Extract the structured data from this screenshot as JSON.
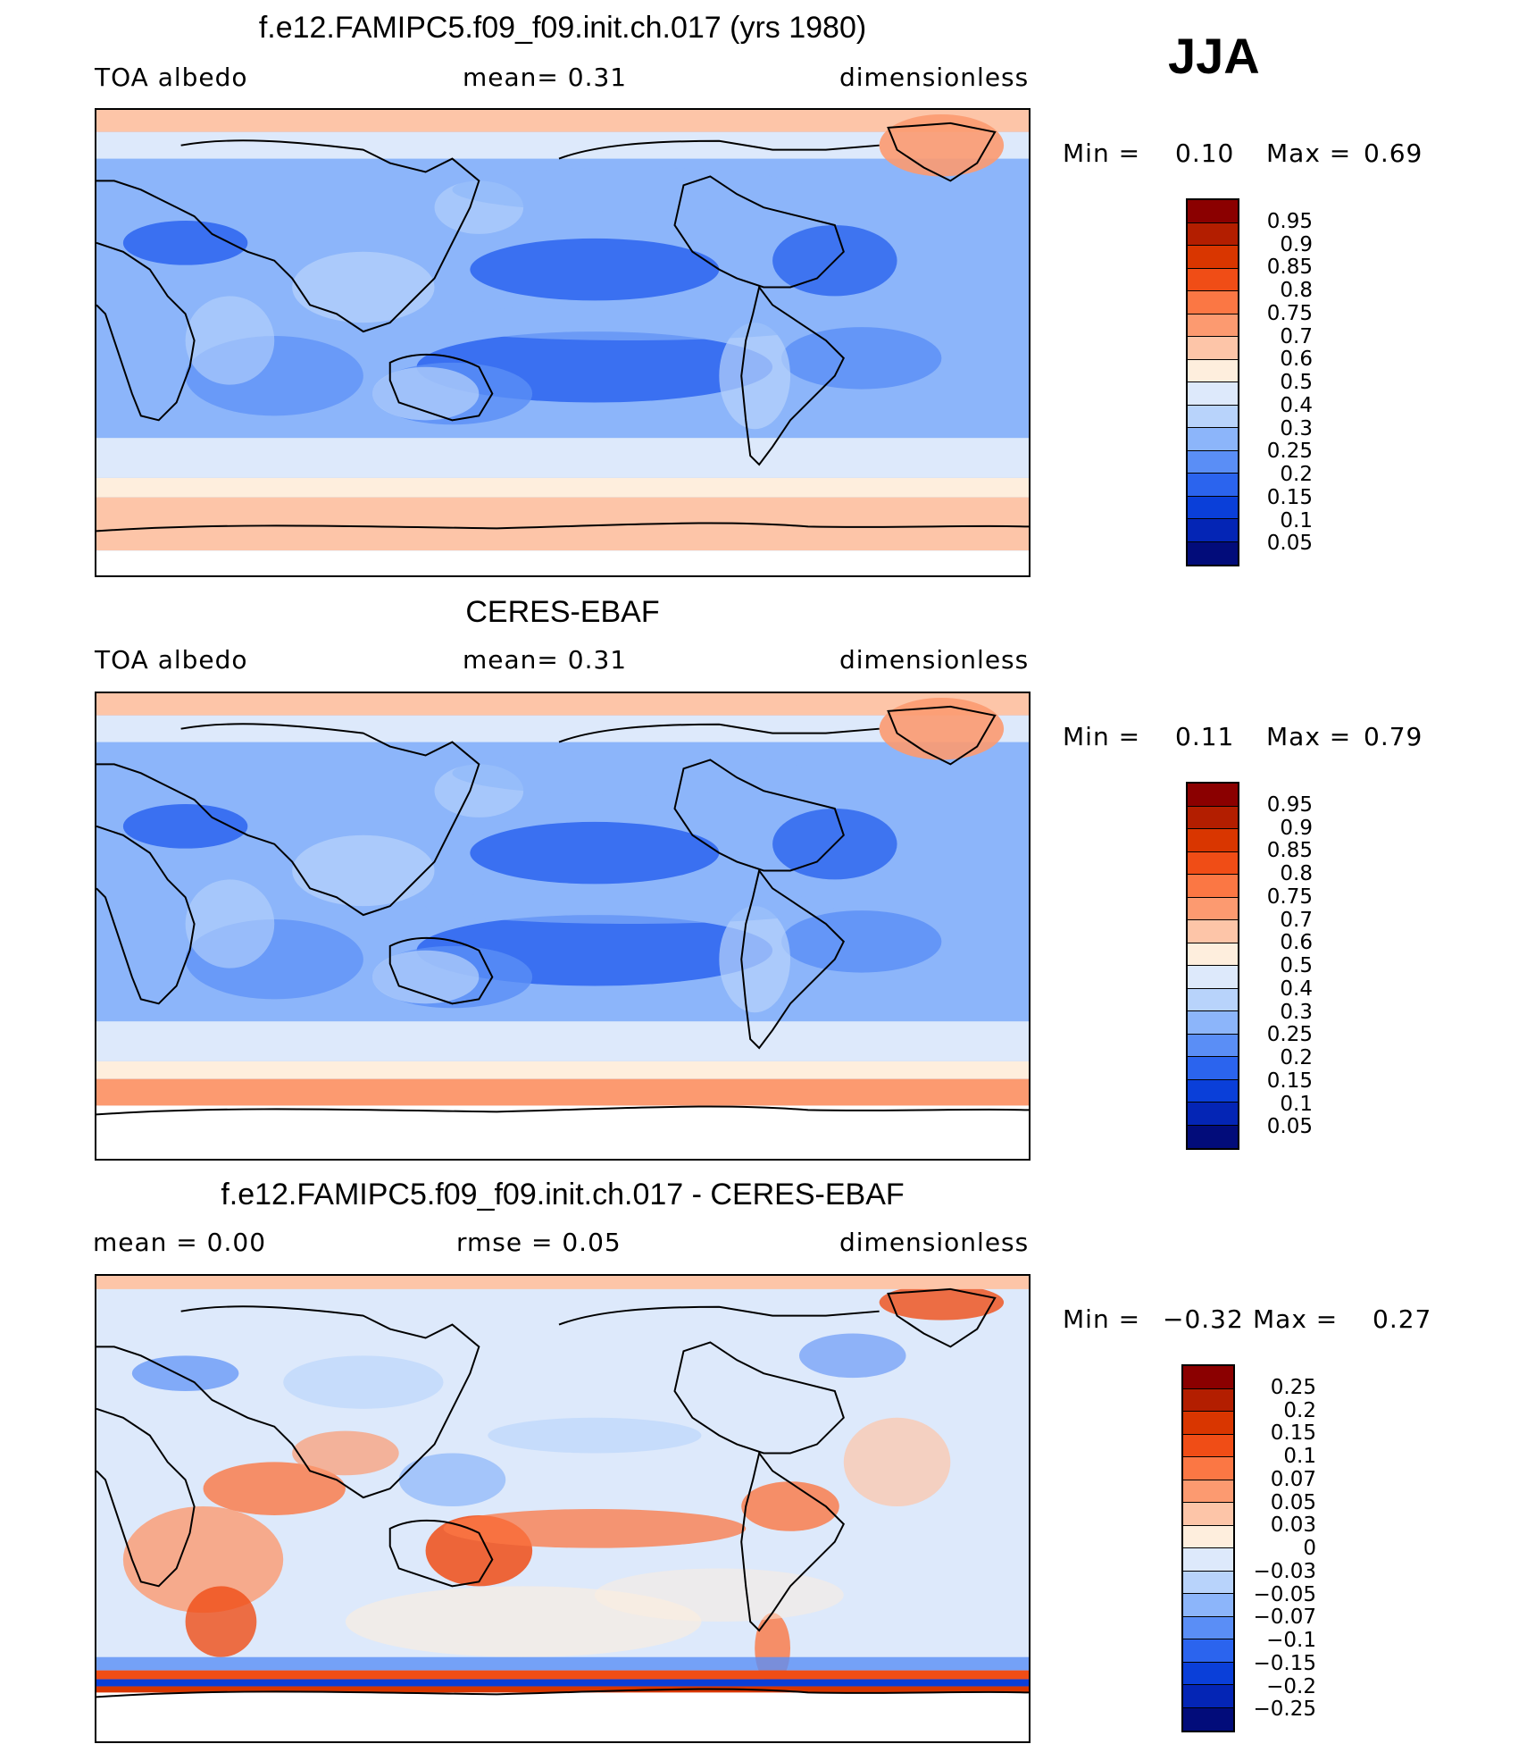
{
  "season": "JJA",
  "panels": [
    {
      "title": "f.e12.FAMIPC5.f09_f09.init.ch.017 (yrs 1980)",
      "left_label": "TOA  albedo",
      "center_label": "mean=    0.31",
      "right_label": "dimensionless",
      "min_label": "Min  =",
      "min_value": "0.10",
      "max_label": "Max  =",
      "max_value": "0.69",
      "field": "model"
    },
    {
      "title": "CERES-EBAF",
      "left_label": "TOA  albedo",
      "center_label": "mean=    0.31",
      "right_label": "dimensionless",
      "min_label": "Min  =",
      "min_value": "0.11",
      "max_label": "Max  =",
      "max_value": "0.79",
      "field": "obs"
    },
    {
      "title": "f.e12.FAMIPC5.f09_f09.init.ch.017 - CERES-EBAF",
      "left_label": "mean  =     0.00",
      "center_label": "rmse  =     0.05",
      "right_label": "dimensionless",
      "min_label": "Min  =",
      "min_value": "−0.32",
      "max_label": "Max  =",
      "max_value": "0.27",
      "field": "diff"
    }
  ],
  "colorbar_abs": {
    "labels": [
      "0.95",
      "0.9",
      "0.85",
      "0.8",
      "0.75",
      "0.7",
      "0.6",
      "0.5",
      "0.4",
      "0.3",
      "0.25",
      "0.2",
      "0.15",
      "0.1",
      "0.05"
    ],
    "colors": [
      "#8b0000",
      "#b31e00",
      "#d93600",
      "#f04d16",
      "#fb7744",
      "#fc9a70",
      "#fdc5a8",
      "#feeedd",
      "#dde9fb",
      "#b8d3fb",
      "#8cb5fa",
      "#5a8ef6",
      "#2b64ee",
      "#0a3fd9",
      "#0425b5",
      "#020c7a"
    ]
  },
  "colorbar_diff": {
    "labels": [
      "0.25",
      "0.2",
      "0.15",
      "0.1",
      "0.07",
      "0.05",
      "0.03",
      "0",
      "−0.03",
      "−0.05",
      "−0.07",
      "−0.1",
      "−0.15",
      "−0.2",
      "−0.25"
    ],
    "colors": [
      "#8b0000",
      "#b31e00",
      "#d93600",
      "#f04d16",
      "#fb7744",
      "#fc9a70",
      "#fdc5a8",
      "#feeedd",
      "#dde9fb",
      "#b8d3fb",
      "#8cb5fa",
      "#5a8ef6",
      "#2b64ee",
      "#0a3fd9",
      "#0425b5",
      "#020c7a"
    ]
  }
}
